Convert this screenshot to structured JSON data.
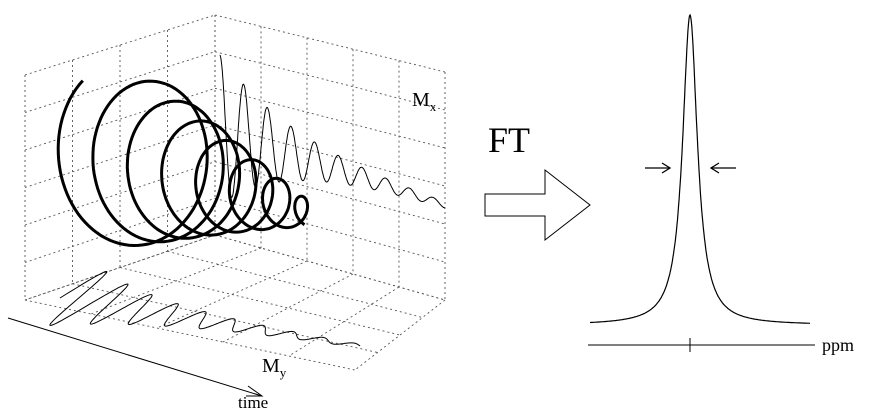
{
  "labels": {
    "mx": {
      "main": "M",
      "sub": "x"
    },
    "my": {
      "main": "M",
      "sub": "y"
    },
    "time": "time",
    "ft": "FT",
    "ppm": "ppm"
  }
}
